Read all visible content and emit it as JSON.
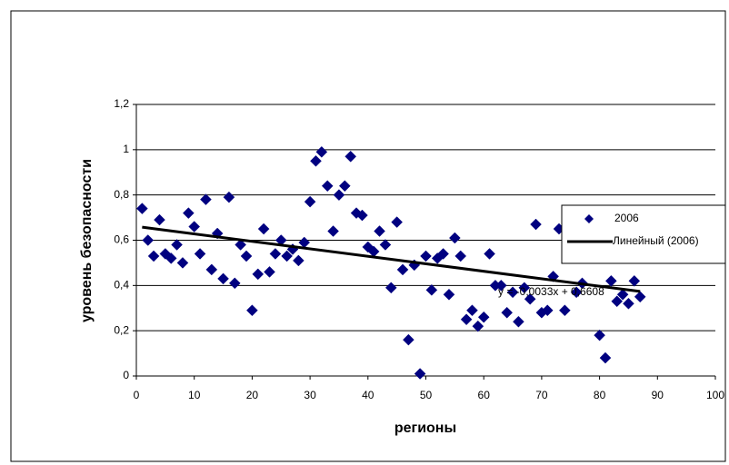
{
  "chart_data": {
    "type": "scatter",
    "xlabel": "регионы",
    "ylabel": "уровень безопасности",
    "xlim": [
      0,
      100
    ],
    "xticks": [
      0,
      10,
      20,
      30,
      40,
      50,
      60,
      70,
      80,
      90,
      100
    ],
    "ylim": [
      0,
      1.2
    ],
    "yticks": [
      0,
      {
        "value": 0.2,
        "label": "0,2"
      },
      {
        "value": 0.4,
        "label": "0,4"
      },
      {
        "value": 0.6,
        "label": "0,6"
      },
      {
        "value": 0.8,
        "label": "0,8"
      },
      1,
      {
        "value": 1.2,
        "label": "1,2"
      }
    ],
    "grid": true,
    "legend": "right",
    "series": [
      {
        "name": "2006",
        "color": "#000080",
        "x": [
          1,
          2,
          3,
          4,
          5,
          6,
          7,
          8,
          9,
          10,
          11,
          12,
          13,
          14,
          15,
          16,
          17,
          18,
          19,
          20,
          21,
          22,
          23,
          24,
          25,
          26,
          27,
          28,
          29,
          30,
          31,
          32,
          33,
          34,
          35,
          36,
          37,
          38,
          39,
          40,
          41,
          42,
          43,
          44,
          45,
          46,
          47,
          48,
          49,
          50,
          51,
          52,
          53,
          54,
          55,
          56,
          57,
          58,
          59,
          60,
          61,
          62,
          63,
          64,
          65,
          66,
          67,
          68,
          69,
          70,
          71,
          72,
          73,
          74,
          75,
          76,
          77,
          79,
          80,
          81,
          82,
          83,
          84,
          85,
          86,
          87
        ],
        "values": [
          0.74,
          0.6,
          0.53,
          0.69,
          0.54,
          0.52,
          0.58,
          0.5,
          0.72,
          0.66,
          0.54,
          0.78,
          0.47,
          0.63,
          0.43,
          0.79,
          0.41,
          0.58,
          0.53,
          0.29,
          0.45,
          0.65,
          0.46,
          0.54,
          0.6,
          0.53,
          0.56,
          0.51,
          0.59,
          0.77,
          0.95,
          0.99,
          0.84,
          0.64,
          0.8,
          0.84,
          0.97,
          0.72,
          0.71,
          0.57,
          0.55,
          0.64,
          0.58,
          0.39,
          0.68,
          0.47,
          0.16,
          0.49,
          0.01,
          0.53,
          0.38,
          0.52,
          0.54,
          0.36,
          0.61,
          0.53,
          0.25,
          0.29,
          0.22,
          0.26,
          0.54,
          0.4,
          0.4,
          0.28,
          0.37,
          0.24,
          0.39,
          0.34,
          0.67,
          0.28,
          0.29,
          0.44,
          0.65,
          0.29,
          0.52,
          0.37,
          0.41,
          0.53,
          0.18,
          0.08,
          0.42,
          0.33,
          0.36,
          0.32,
          0.42,
          0.35
        ]
      }
    ],
    "trendline": {
      "name": "Линейный (2006)",
      "color": "#000000",
      "slope": -0.0033,
      "intercept": 0.6608,
      "label": "y = -0,0033x + 0,6608"
    }
  }
}
